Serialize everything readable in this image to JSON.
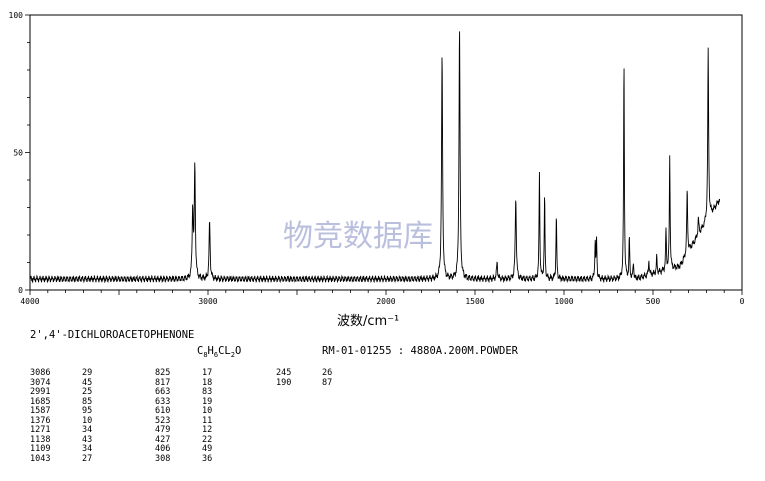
{
  "chart_data": {
    "type": "line",
    "title": "",
    "xlabel": "波数/cm⁻¹",
    "ylabel": "",
    "xlim": [
      4000,
      0
    ],
    "ylim": [
      0,
      100
    ],
    "x_ticks": [
      4000,
      3000,
      2000,
      1500,
      1000,
      500,
      0
    ],
    "y_ticks": [
      0,
      50,
      100
    ],
    "grid": false,
    "series": [
      {
        "peaks": [
          {
            "x": 3086,
            "y": 29
          },
          {
            "x": 3074,
            "y": 45
          },
          {
            "x": 2991,
            "y": 25
          },
          {
            "x": 1685,
            "y": 85
          },
          {
            "x": 1587,
            "y": 95
          },
          {
            "x": 1376,
            "y": 10
          },
          {
            "x": 1271,
            "y": 34
          },
          {
            "x": 1138,
            "y": 43
          },
          {
            "x": 1109,
            "y": 34
          },
          {
            "x": 1043,
            "y": 27
          },
          {
            "x": 825,
            "y": 17
          },
          {
            "x": 817,
            "y": 18
          },
          {
            "x": 663,
            "y": 83
          },
          {
            "x": 633,
            "y": 19
          },
          {
            "x": 610,
            "y": 10
          },
          {
            "x": 523,
            "y": 11
          },
          {
            "x": 479,
            "y": 12
          },
          {
            "x": 427,
            "y": 22
          },
          {
            "x": 406,
            "y": 49
          },
          {
            "x": 308,
            "y": 36
          },
          {
            "x": 245,
            "y": 26
          },
          {
            "x": 190,
            "y": 87
          }
        ]
      }
    ]
  },
  "info": {
    "compound": "2',4'-DICHLOROACETOPHENONE",
    "formula": "C8H6CL2O",
    "record": "RM-01-01255 : 4880A.200M.POWDER",
    "watermark": "物竞数据库"
  },
  "peak_table": {
    "columns": [
      "3086\n3074\n2991\n1685\n1587\n1376\n1271\n1138\n1109\n1043",
      "29\n45\n25\n85\n95\n10\n34\n43\n34\n27",
      "825\n817\n663\n633\n610\n523\n479\n427\n406\n308",
      "17\n18\n83\n19\n10\n11\n12\n22\n49\n36",
      "245\n190",
      "26\n87"
    ]
  }
}
